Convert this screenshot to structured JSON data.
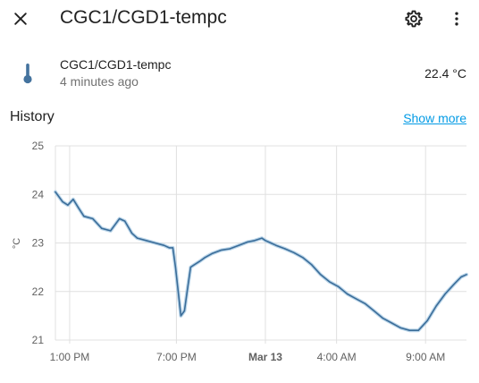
{
  "header": {
    "title": "CGC1/CGD1-tempc",
    "close_icon": "close-icon",
    "settings_icon": "gear-icon",
    "more_icon": "more-vertical-icon"
  },
  "entity": {
    "icon": "thermometer-icon",
    "name": "CGC1/CGD1-tempc",
    "last_changed": "4 minutes ago",
    "state": "22.4 °C"
  },
  "history": {
    "title": "History",
    "show_more_label": "Show more"
  },
  "colors": {
    "line": "#3b6d99",
    "band": "#a9cbe3",
    "grid": "#e0e0e0",
    "link": "#039be5"
  },
  "chart_data": {
    "type": "line",
    "ylabel": "°C",
    "ylim": [
      21,
      25
    ],
    "yticks": [
      "21",
      "22",
      "23",
      "24",
      "25"
    ],
    "x_range_hours": [
      12.2,
      35.3
    ],
    "xticks": [
      {
        "label": "1:00 PM",
        "hour": 13,
        "bold": false
      },
      {
        "label": "7:00 PM",
        "hour": 19,
        "bold": false
      },
      {
        "label": "Mar 13",
        "hour": 24,
        "bold": true
      },
      {
        "label": "4:00 AM",
        "hour": 28,
        "bold": false
      },
      {
        "label": "9:00 AM",
        "hour": 33,
        "bold": false
      }
    ],
    "grid": true,
    "series": [
      {
        "x": [
          12.2,
          12.6,
          12.9,
          13.2,
          13.5,
          13.8,
          14.3,
          14.8,
          15.3,
          15.8,
          16.1,
          16.5,
          16.8,
          17.3,
          17.8,
          18.3,
          18.6,
          18.8,
          18.95,
          19.1,
          19.25,
          19.45,
          19.6,
          19.8,
          20.0,
          20.3,
          20.6,
          21.0,
          21.5,
          22.0,
          22.5,
          23.0,
          23.4,
          23.8,
          24.0,
          24.3,
          24.6,
          25.1,
          25.6,
          26.1,
          26.6,
          27.1,
          27.6,
          28.1,
          28.6,
          29.1,
          29.6,
          30.1,
          30.6,
          31.1,
          31.6,
          32.1,
          32.6,
          33.1,
          33.6,
          34.1,
          34.6,
          35.0,
          35.3
        ],
        "values": [
          24.05,
          23.85,
          23.78,
          23.9,
          23.72,
          23.55,
          23.5,
          23.3,
          23.25,
          23.5,
          23.45,
          23.2,
          23.1,
          23.05,
          23.0,
          22.95,
          22.9,
          22.9,
          22.5,
          22.0,
          21.5,
          21.6,
          22.0,
          22.5,
          22.55,
          22.62,
          22.7,
          22.78,
          22.85,
          22.88,
          22.95,
          23.02,
          23.05,
          23.1,
          23.05,
          23.0,
          22.95,
          22.88,
          22.8,
          22.7,
          22.55,
          22.35,
          22.2,
          22.1,
          21.95,
          21.85,
          21.75,
          21.6,
          21.45,
          21.35,
          21.25,
          21.2,
          21.2,
          21.4,
          21.7,
          21.95,
          22.15,
          22.3,
          22.35
        ]
      }
    ]
  }
}
